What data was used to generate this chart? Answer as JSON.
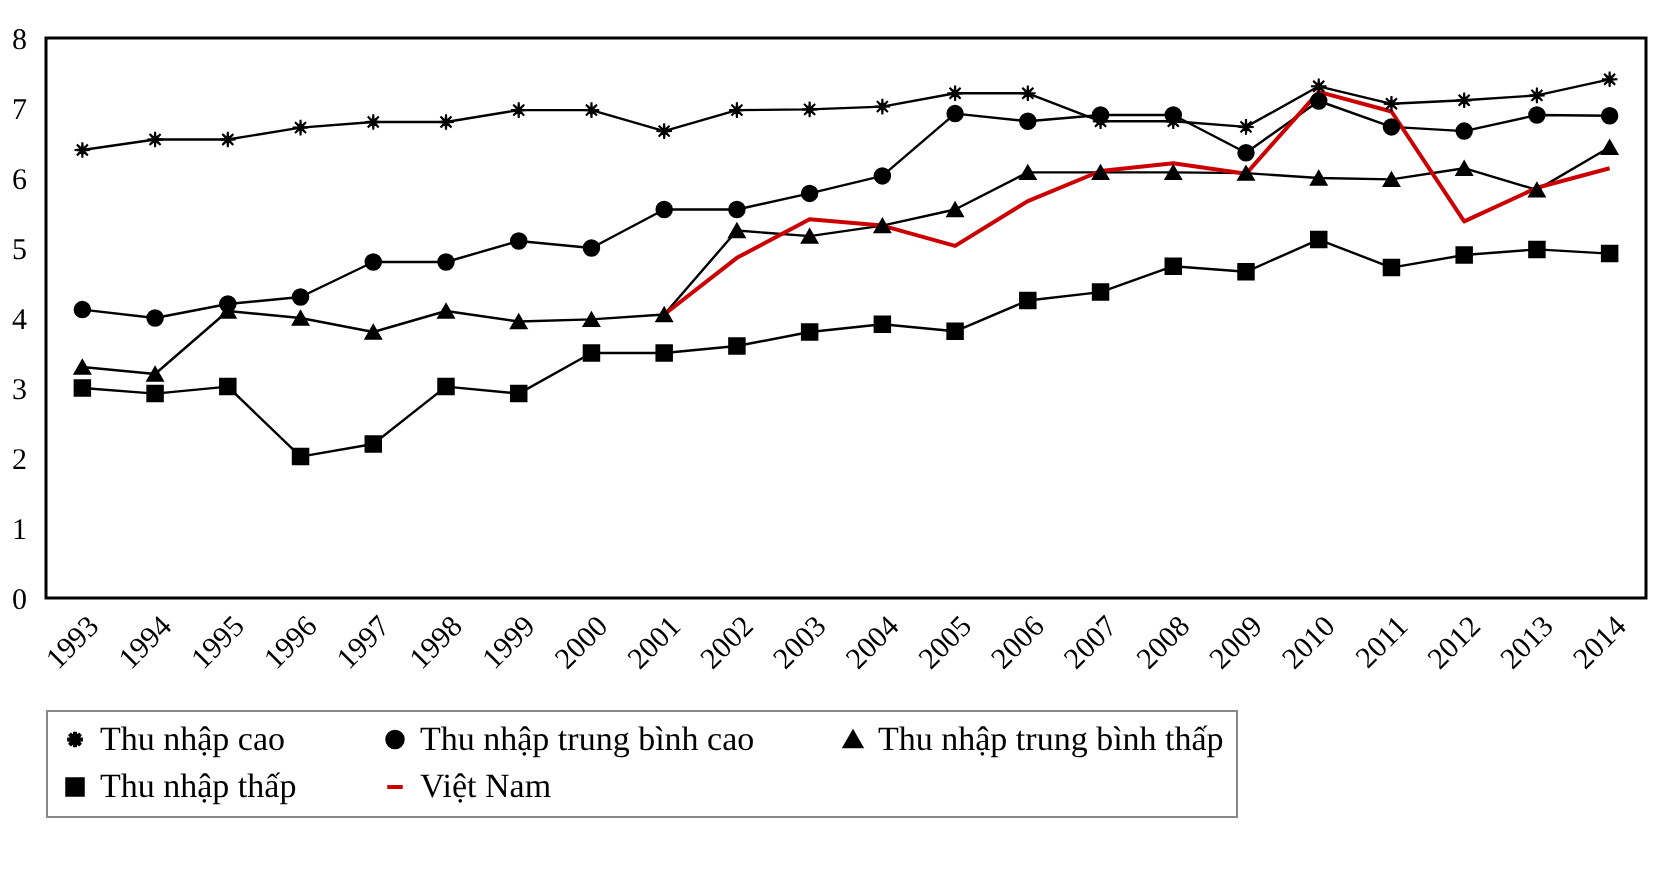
{
  "chart_data": {
    "type": "line",
    "categories": [
      "1993",
      "1994",
      "1995",
      "1996",
      "1997",
      "1998",
      "1999",
      "2000",
      "2001",
      "2002",
      "2003",
      "2004",
      "2005",
      "2006",
      "2007",
      "2008",
      "2009",
      "2010",
      "2011",
      "2012",
      "2013",
      "2014"
    ],
    "ylim": [
      0,
      8
    ],
    "yticks": [
      0,
      1,
      2,
      3,
      4,
      5,
      6,
      7,
      8
    ],
    "grid": false,
    "legend": "bottom",
    "series": [
      {
        "name": "Thu nhập cao",
        "color": "#000000",
        "marker": "star",
        "values": [
          6.4,
          6.55,
          6.55,
          6.72,
          6.8,
          6.8,
          6.97,
          6.97,
          6.67,
          6.97,
          6.98,
          7.02,
          7.21,
          7.21,
          6.81,
          6.81,
          6.73,
          7.31,
          7.06,
          7.11,
          7.18,
          7.41
        ]
      },
      {
        "name": "Thu nhập trung bình cao",
        "color": "#000000",
        "marker": "circle",
        "values": [
          4.12,
          4.0,
          4.2,
          4.3,
          4.8,
          4.8,
          5.1,
          5.0,
          5.55,
          5.55,
          5.78,
          6.03,
          6.92,
          6.81,
          6.9,
          6.9,
          6.36,
          7.1,
          6.73,
          6.67,
          6.9,
          6.89
        ]
      },
      {
        "name": "Thu nhập trung bình thấp",
        "color": "#000000",
        "marker": "triangle",
        "values": [
          3.3,
          3.2,
          4.1,
          4.0,
          3.8,
          4.1,
          3.95,
          3.98,
          4.05,
          5.25,
          5.17,
          5.32,
          5.55,
          6.08,
          6.08,
          6.08,
          6.07,
          6.0,
          5.98,
          6.14,
          5.83,
          6.44
        ]
      },
      {
        "name": "Thu nhập thấp",
        "color": "#000000",
        "marker": "square",
        "values": [
          3.0,
          2.92,
          3.02,
          2.02,
          2.2,
          3.02,
          2.92,
          3.5,
          3.5,
          3.6,
          3.8,
          3.91,
          3.81,
          4.25,
          4.37,
          4.74,
          4.66,
          5.12,
          4.72,
          4.9,
          4.98,
          4.92
        ]
      },
      {
        "name": "Việt Nam",
        "color": "#cc0000",
        "marker": "none",
        "values": [
          null,
          null,
          null,
          null,
          null,
          null,
          null,
          null,
          4.05,
          4.86,
          5.41,
          5.32,
          5.03,
          5.67,
          6.1,
          6.21,
          6.06,
          7.23,
          6.95,
          5.38,
          5.86,
          6.14
        ]
      }
    ]
  }
}
